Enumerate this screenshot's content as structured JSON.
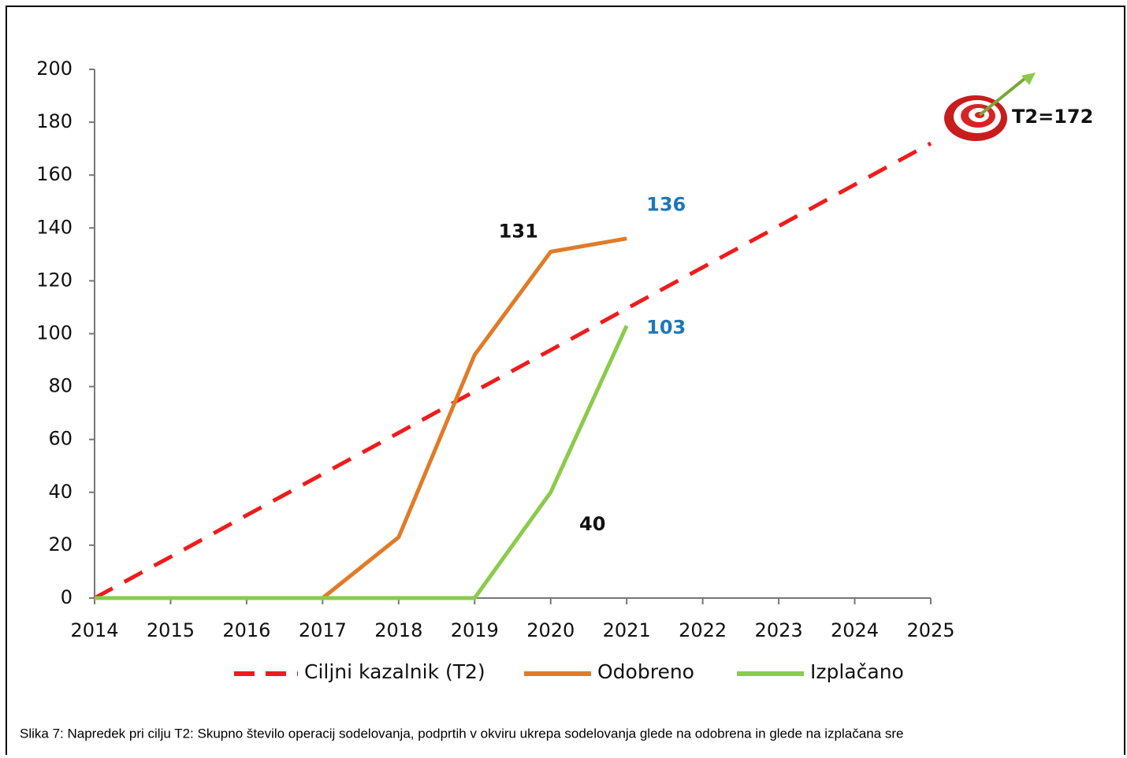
{
  "chart_data": {
    "type": "line",
    "x": [
      2014,
      2015,
      2016,
      2017,
      2018,
      2019,
      2020,
      2021,
      2022,
      2023,
      2024,
      2025
    ],
    "series": [
      {
        "name": "Ciljni kazalnik (T2)",
        "color": "#ee1c1c",
        "dashed": true,
        "values": [
          0,
          15.6,
          31.3,
          46.9,
          62.5,
          78.2,
          93.8,
          109.5,
          125.1,
          140.7,
          156.4,
          172
        ]
      },
      {
        "name": "Odobreno",
        "color": "#e07b28",
        "values": [
          0,
          0,
          0,
          0,
          23,
          92,
          131,
          136,
          null,
          null,
          null,
          null
        ]
      },
      {
        "name": "Izplačano",
        "color": "#8bcb4b",
        "values": [
          0,
          0,
          0,
          0,
          0,
          0,
          40,
          103,
          null,
          null,
          null,
          null
        ]
      }
    ],
    "xlim": [
      2014,
      2025
    ],
    "xticks": [
      2014,
      2015,
      2016,
      2017,
      2018,
      2019,
      2020,
      2021,
      2022,
      2023,
      2024,
      2025
    ],
    "ylim": [
      0,
      200
    ],
    "yticks": [
      0,
      20,
      40,
      60,
      80,
      100,
      120,
      140,
      160,
      180,
      200
    ],
    "annotation": "T2=172",
    "caption": "Slika 7: Napredek pri cilju T2: Skupno število operacij sodelovanja, podprtih v okviru ukrepa sodelovanja glede na odobrena in glede na izplačana sre"
  }
}
